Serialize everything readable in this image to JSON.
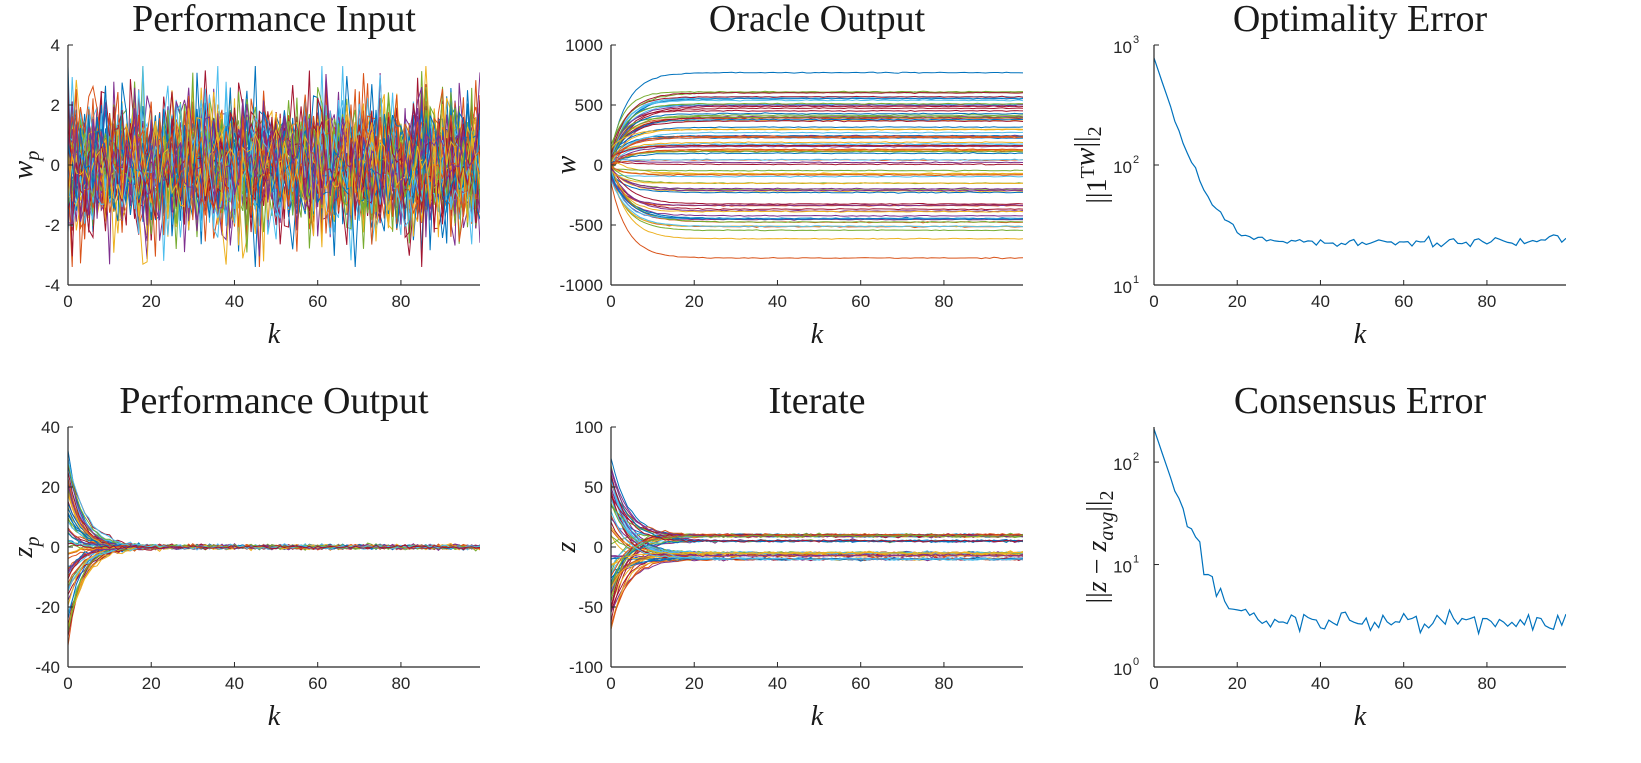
{
  "chart_data": [
    {
      "type": "line",
      "id": "performance-input",
      "title": "Performance Input",
      "xlabel": "k",
      "ylabel": {
        "main": "w",
        "sub": "p"
      },
      "xlim": [
        0,
        99
      ],
      "ylim": [
        -4,
        4
      ],
      "xticks": [
        0,
        20,
        40,
        60,
        80
      ],
      "xtick_labels": [
        "0",
        "20",
        "40",
        "60",
        "80"
      ],
      "yticks": [
        4,
        2,
        0,
        -2,
        -4
      ],
      "ytick_labels": [
        "4",
        "2",
        "0",
        "-2",
        "-4"
      ],
      "series_description": "many random noise series, mean 0, roughly within ±3",
      "grid": false
    },
    {
      "type": "line",
      "id": "oracle-output",
      "title": "Oracle Output",
      "xlabel": "k",
      "ylabel": {
        "main": "w",
        "sub": ""
      },
      "xlim": [
        0,
        99
      ],
      "ylim": [
        -1000,
        1000
      ],
      "xticks": [
        0,
        20,
        40,
        60,
        80
      ],
      "xtick_labels": [
        "0",
        "20",
        "40",
        "60",
        "80"
      ],
      "yticks": [
        1000,
        500,
        0,
        -500,
        -1000
      ],
      "ytick_labels": [
        "1000",
        "500",
        "0",
        "-500",
        "-1000"
      ],
      "series_description": "many series starting near 0 and converging to constant levels between about -780 and 770",
      "grid": false
    },
    {
      "type": "line",
      "id": "optimality-error",
      "title": "Optimality Error",
      "xlabel": "k",
      "ylabel": {
        "main": "||1",
        "sup": "T",
        "mid": "w||",
        "sub": "2"
      },
      "xlim": [
        0,
        99
      ],
      "ylim": [
        10,
        1000
      ],
      "yscale": "log",
      "xticks": [
        0,
        20,
        40,
        60,
        80
      ],
      "xtick_labels": [
        "0",
        "20",
        "40",
        "60",
        "80"
      ],
      "yticks": [
        1000,
        100,
        10
      ],
      "ytick_labels": [
        {
          "base": "10",
          "exp": "3"
        },
        {
          "base": "10",
          "exp": "2"
        },
        {
          "base": "10",
          "exp": "1"
        }
      ],
      "series": [
        {
          "color": "#0072BD",
          "start": 780,
          "decay_rate": 0.245,
          "floor": 23,
          "noise": 0.05
        }
      ],
      "grid": false
    },
    {
      "type": "line",
      "id": "performance-output",
      "title": "Performance Output",
      "xlabel": "k",
      "ylabel": {
        "main": "z",
        "sub": "p"
      },
      "xlim": [
        0,
        99
      ],
      "ylim": [
        -40,
        40
      ],
      "xticks": [
        0,
        20,
        40,
        60,
        80
      ],
      "xtick_labels": [
        "0",
        "20",
        "40",
        "60",
        "80"
      ],
      "yticks": [
        40,
        20,
        0,
        -20,
        -40
      ],
      "ytick_labels": [
        "40",
        "20",
        "0",
        "-20",
        "-40"
      ],
      "series_description": "many series starting within about ±33 and decaying to 0 by k≈15",
      "grid": false
    },
    {
      "type": "line",
      "id": "iterate",
      "title": "Iterate",
      "xlabel": "k",
      "ylabel": {
        "main": "z",
        "sub": ""
      },
      "xlim": [
        0,
        99
      ],
      "ylim": [
        -100,
        100
      ],
      "xticks": [
        0,
        20,
        40,
        60,
        80
      ],
      "xtick_labels": [
        "0",
        "20",
        "40",
        "60",
        "80"
      ],
      "yticks": [
        100,
        50,
        0,
        -50,
        -100
      ],
      "ytick_labels": [
        "100",
        "50",
        "0",
        "-50",
        "-100"
      ],
      "series_description": "many series starting within about ±75 and converging to bands near +10, +5, -5 and -10",
      "grid": false
    },
    {
      "type": "line",
      "id": "consensus-error",
      "title": "Consensus Error",
      "xlabel": "k",
      "ylabel": {
        "main": "||z − z",
        "sub": "avg",
        "end": "||",
        "sub2": "2"
      },
      "xlim": [
        0,
        99
      ],
      "ylim": [
        1,
        220
      ],
      "yscale": "log",
      "xticks": [
        0,
        20,
        40,
        60,
        80
      ],
      "xtick_labels": [
        "0",
        "20",
        "40",
        "60",
        "80"
      ],
      "yticks": [
        100,
        10,
        1
      ],
      "ytick_labels": [
        {
          "base": "10",
          "exp": "2"
        },
        {
          "base": "10",
          "exp": "1"
        },
        {
          "base": "10",
          "exp": "0"
        }
      ],
      "series": [
        {
          "color": "#0072BD",
          "start": 210,
          "decay_rate": 0.28,
          "floor": 2.8,
          "noise": 0.12
        }
      ],
      "grid": false
    }
  ],
  "palette": [
    "#0072BD",
    "#D95319",
    "#EDB120",
    "#7E2F8E",
    "#77AC30",
    "#4DBEEE",
    "#A2142F"
  ],
  "axis_color": "#262626"
}
